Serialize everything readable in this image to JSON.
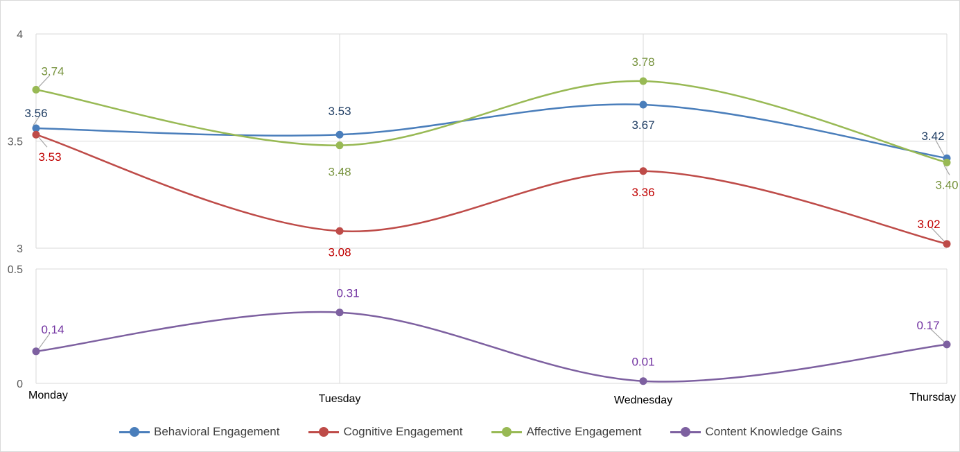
{
  "chart_data": [
    {
      "type": "line",
      "categories": [
        "Monday",
        "Tuesday",
        "Wednesday",
        "Thursday"
      ],
      "ylim": [
        3,
        4
      ],
      "yticks": [
        "3",
        "3.5",
        "4"
      ],
      "grid": true,
      "series": [
        {
          "name": "Behavioral Engagement",
          "values": [
            3.56,
            3.53,
            3.67,
            3.42
          ],
          "labels": [
            "3.56",
            "3.53",
            "3.67",
            "3.42"
          ],
          "color": "#4A7EBB"
        },
        {
          "name": "Cognitive Engagement",
          "values": [
            3.53,
            3.08,
            3.36,
            3.02
          ],
          "labels": [
            "3.53",
            "3.08",
            "3.36",
            "3.02"
          ],
          "color": "#BE4B48"
        },
        {
          "name": "Affective Engagement",
          "values": [
            3.74,
            3.48,
            3.78,
            3.4
          ],
          "labels": [
            "3.74",
            "3.48",
            "3.78",
            "3.40"
          ],
          "color": "#98B954"
        }
      ]
    },
    {
      "type": "line",
      "categories": [
        "Monday",
        "Tuesday",
        "Wednesday",
        "Thursday"
      ],
      "ylim": [
        0,
        0.5
      ],
      "yticks": [
        "0",
        "0.5"
      ],
      "grid": true,
      "series": [
        {
          "name": "Content Knowledge Gains",
          "values": [
            0.14,
            0.31,
            0.01,
            0.17
          ],
          "labels": [
            "0.14",
            "0.31",
            "0.01",
            "0.17"
          ],
          "color": "#7D60A0"
        }
      ]
    }
  ],
  "legend": {
    "placement": "bottom",
    "items": [
      {
        "label": "Behavioral Engagement",
        "color": "#4A7EBB"
      },
      {
        "label": "Cognitive Engagement",
        "color": "#BE4B48"
      },
      {
        "label": "Affective Engagement",
        "color": "#98B954"
      },
      {
        "label": "Content Knowledge Gains",
        "color": "#7D60A0"
      }
    ]
  },
  "label_colors": {
    "Behavioral Engagement": "#1F3D63",
    "Cognitive Engagement": "#C00000",
    "Affective Engagement": "#76923C",
    "Content Knowledge Gains": "#7030A0"
  }
}
